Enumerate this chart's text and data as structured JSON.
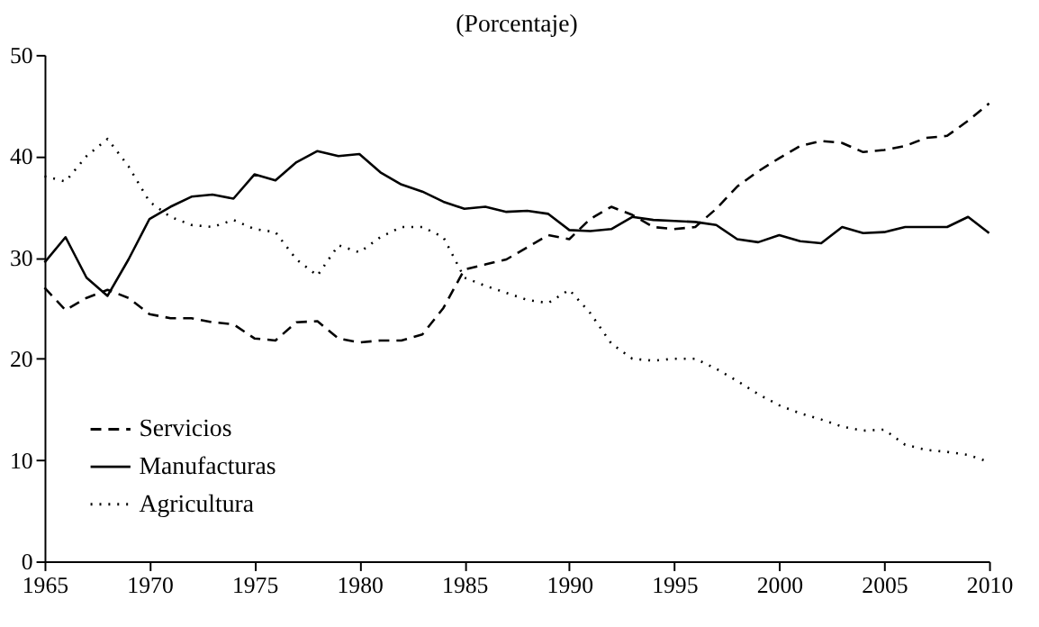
{
  "chart_data": {
    "type": "line",
    "title": "(Porcentaje)",
    "x": [
      1965,
      1966,
      1967,
      1968,
      1969,
      1970,
      1971,
      1972,
      1973,
      1974,
      1975,
      1976,
      1977,
      1978,
      1979,
      1980,
      1981,
      1982,
      1983,
      1984,
      1985,
      1986,
      1987,
      1988,
      1989,
      1990,
      1991,
      1992,
      1993,
      1994,
      1995,
      1996,
      1997,
      1998,
      1999,
      2000,
      2001,
      2002,
      2003,
      2004,
      2005,
      2006,
      2007,
      2008,
      2009,
      2010
    ],
    "series": [
      {
        "name": "Servicios",
        "color": "#000000",
        "line_style": "dashed",
        "values": [
          27,
          24.8,
          26,
          26.8,
          26,
          24.4,
          24,
          24,
          23.6,
          23.4,
          22,
          21.8,
          23.6,
          23.7,
          22,
          21.6,
          21.8,
          21.8,
          22.4,
          25,
          28.8,
          29.3,
          29.8,
          31,
          32.2,
          31.8,
          33.8,
          35,
          34.2,
          33,
          32.8,
          33,
          34.8,
          37,
          38.5,
          39.8,
          41,
          41.5,
          41.3,
          40.4,
          40.6,
          41,
          41.8,
          42,
          43.5,
          45.2
        ]
      },
      {
        "name": "Manufacturas",
        "color": "#000000",
        "line_style": "solid",
        "values": [
          29.5,
          32,
          28,
          26.2,
          29.8,
          33.8,
          35,
          36,
          36.2,
          35.8,
          38.2,
          37.6,
          39.4,
          40.5,
          40,
          40.2,
          38.4,
          37.2,
          36.5,
          35.5,
          34.8,
          35,
          34.5,
          34.6,
          34.3,
          32.7,
          32.6,
          32.8,
          34,
          33.7,
          33.6,
          33.5,
          33.2,
          31.8,
          31.5,
          32.2,
          31.6,
          31.4,
          33,
          32.4,
          32.5,
          33,
          33,
          33,
          34,
          32.4
        ]
      },
      {
        "name": "Agricultura",
        "color": "#000000",
        "line_style": "dotted",
        "values": [
          38,
          37.5,
          40,
          41.7,
          39,
          35.5,
          34,
          33.2,
          33,
          33.7,
          32.8,
          32.5,
          29.8,
          28.2,
          31.2,
          30.5,
          32,
          33,
          33,
          32,
          28,
          27.2,
          26.5,
          25.8,
          25.5,
          26.8,
          24.5,
          21.5,
          20,
          19.8,
          20,
          20,
          19,
          17.8,
          16.5,
          15.4,
          14.6,
          14,
          13.3,
          12.9,
          13,
          11.5,
          11,
          10.8,
          10.5,
          9.8
        ]
      }
    ],
    "xlim": [
      1965,
      2010
    ],
    "xticks": [
      1965,
      1970,
      1975,
      1980,
      1985,
      1990,
      1995,
      2000,
      2005,
      2010
    ],
    "ylim": [
      0,
      50
    ],
    "yticks": [
      0,
      10,
      20,
      30,
      40,
      50
    ],
    "grid": false,
    "legend": "bottom left"
  }
}
